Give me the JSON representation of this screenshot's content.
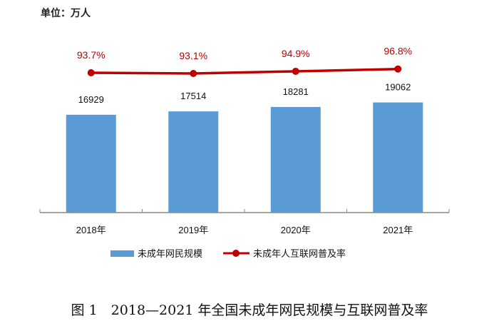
{
  "unit_label": "单位：万人",
  "caption": "图 1　2018—2021 年全国未成年网民规模与互联网普及率",
  "chart_data": {
    "type": "bar+line",
    "categories": [
      "2018年",
      "2019年",
      "2020年",
      "2021年"
    ],
    "series": [
      {
        "name": "未成年网民规模",
        "type": "bar",
        "values": [
          16929,
          17514,
          18281,
          19062
        ],
        "labels": [
          "16929",
          "17514",
          "18281",
          "19062"
        ],
        "color": "#5b9bd5"
      },
      {
        "name": "未成年人互联网普及率",
        "type": "line",
        "values": [
          93.7,
          93.1,
          94.9,
          96.8
        ],
        "unit": "%",
        "labels": [
          "93.7%",
          "93.1%",
          "94.9%",
          "96.8%"
        ],
        "color": "#c00000"
      }
    ],
    "ylim": [
      0,
      30000
    ],
    "grid": false,
    "legend_position": "bottom"
  }
}
